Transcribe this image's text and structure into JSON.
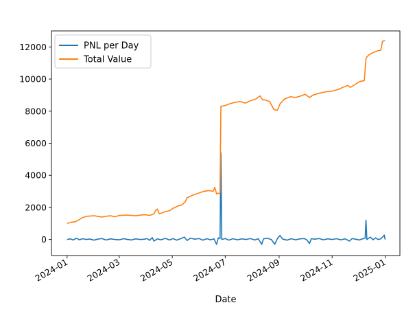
{
  "chart_data": {
    "type": "line",
    "xlabel": "Date",
    "ylabel": "",
    "xlim": [
      "2023-12-14",
      "2025-01-18"
    ],
    "ylim": [
      -1000,
      13000
    ],
    "grid": false,
    "legend": "upper-left",
    "x_ticks": [
      {
        "value": "2024-01-01",
        "label": "2024-01"
      },
      {
        "value": "2024-03-01",
        "label": "2024-03"
      },
      {
        "value": "2024-05-01",
        "label": "2024-05"
      },
      {
        "value": "2024-07-01",
        "label": "2024-07"
      },
      {
        "value": "2024-09-01",
        "label": "2024-09"
      },
      {
        "value": "2024-11-01",
        "label": "2024-11"
      },
      {
        "value": "2025-01-01",
        "label": "2025-01"
      }
    ],
    "y_ticks": [
      0,
      2000,
      4000,
      6000,
      8000,
      10000,
      12000
    ],
    "series": [
      {
        "name": "PNL per Day",
        "color": "#1f77b4",
        "points": [
          [
            "2024-01-01",
            0
          ],
          [
            "2024-01-05",
            40
          ],
          [
            "2024-01-08",
            -30
          ],
          [
            "2024-01-12",
            80
          ],
          [
            "2024-01-15",
            -20
          ],
          [
            "2024-01-19",
            50
          ],
          [
            "2024-01-23",
            0
          ],
          [
            "2024-01-27",
            30
          ],
          [
            "2024-02-01",
            -40
          ],
          [
            "2024-02-05",
            20
          ],
          [
            "2024-02-10",
            60
          ],
          [
            "2024-02-15",
            -30
          ],
          [
            "2024-02-20",
            40
          ],
          [
            "2024-02-25",
            0
          ],
          [
            "2024-03-01",
            -20
          ],
          [
            "2024-03-06",
            50
          ],
          [
            "2024-03-10",
            10
          ],
          [
            "2024-03-15",
            -30
          ],
          [
            "2024-03-20",
            40
          ],
          [
            "2024-03-25",
            0
          ],
          [
            "2024-03-30",
            20
          ],
          [
            "2024-04-02",
            60
          ],
          [
            "2024-04-05",
            -50
          ],
          [
            "2024-04-08",
            120
          ],
          [
            "2024-04-10",
            -100
          ],
          [
            "2024-04-14",
            40
          ],
          [
            "2024-04-18",
            -20
          ],
          [
            "2024-04-23",
            70
          ],
          [
            "2024-04-28",
            -30
          ],
          [
            "2024-05-02",
            60
          ],
          [
            "2024-05-06",
            -40
          ],
          [
            "2024-05-10",
            40
          ],
          [
            "2024-05-15",
            150
          ],
          [
            "2024-05-18",
            -60
          ],
          [
            "2024-05-22",
            80
          ],
          [
            "2024-05-27",
            20
          ],
          [
            "2024-06-01",
            60
          ],
          [
            "2024-06-05",
            -40
          ],
          [
            "2024-06-10",
            50
          ],
          [
            "2024-06-14",
            -20
          ],
          [
            "2024-06-18",
            40
          ],
          [
            "2024-06-21",
            -300
          ],
          [
            "2024-06-23",
            100
          ],
          [
            "2024-06-25",
            60
          ],
          [
            "2024-06-26",
            5400
          ],
          [
            "2024-06-27",
            0
          ],
          [
            "2024-07-01",
            60
          ],
          [
            "2024-07-05",
            -40
          ],
          [
            "2024-07-10",
            50
          ],
          [
            "2024-07-15",
            -20
          ],
          [
            "2024-07-20",
            40
          ],
          [
            "2024-07-25",
            0
          ],
          [
            "2024-07-30",
            60
          ],
          [
            "2024-08-04",
            -30
          ],
          [
            "2024-08-08",
            50
          ],
          [
            "2024-08-12",
            -300
          ],
          [
            "2024-08-14",
            40
          ],
          [
            "2024-08-18",
            80
          ],
          [
            "2024-08-23",
            0
          ],
          [
            "2024-08-27",
            -300
          ],
          [
            "2024-08-30",
            60
          ],
          [
            "2024-09-02",
            250
          ],
          [
            "2024-09-05",
            30
          ],
          [
            "2024-09-10",
            -40
          ],
          [
            "2024-09-15",
            50
          ],
          [
            "2024-09-20",
            -20
          ],
          [
            "2024-09-25",
            40
          ],
          [
            "2024-09-30",
            60
          ],
          [
            "2024-10-03",
            -30
          ],
          [
            "2024-10-06",
            -250
          ],
          [
            "2024-10-08",
            50
          ],
          [
            "2024-10-12",
            20
          ],
          [
            "2024-10-17",
            60
          ],
          [
            "2024-10-22",
            -20
          ],
          [
            "2024-10-27",
            40
          ],
          [
            "2024-11-01",
            0
          ],
          [
            "2024-11-06",
            50
          ],
          [
            "2024-11-11",
            -20
          ],
          [
            "2024-11-16",
            40
          ],
          [
            "2024-11-21",
            -100
          ],
          [
            "2024-11-24",
            60
          ],
          [
            "2024-11-28",
            20
          ],
          [
            "2024-12-02",
            -30
          ],
          [
            "2024-12-06",
            40
          ],
          [
            "2024-12-09",
            80
          ],
          [
            "2024-12-10",
            1200
          ],
          [
            "2024-12-11",
            0
          ],
          [
            "2024-12-15",
            150
          ],
          [
            "2024-12-18",
            -20
          ],
          [
            "2024-12-21",
            100
          ],
          [
            "2024-12-24",
            0
          ],
          [
            "2024-12-27",
            40
          ],
          [
            "2024-12-29",
            150
          ],
          [
            "2024-12-31",
            280
          ],
          [
            "2025-01-01",
            0
          ]
        ]
      },
      {
        "name": "Total Value",
        "color": "#ff7f0e",
        "points": [
          [
            "2024-01-01",
            1000
          ],
          [
            "2024-01-06",
            1080
          ],
          [
            "2024-01-10",
            1100
          ],
          [
            "2024-01-14",
            1200
          ],
          [
            "2024-01-18",
            1350
          ],
          [
            "2024-01-24",
            1450
          ],
          [
            "2024-02-01",
            1480
          ],
          [
            "2024-02-10",
            1400
          ],
          [
            "2024-02-15",
            1450
          ],
          [
            "2024-02-20",
            1480
          ],
          [
            "2024-02-25",
            1420
          ],
          [
            "2024-03-01",
            1500
          ],
          [
            "2024-03-10",
            1520
          ],
          [
            "2024-03-20",
            1480
          ],
          [
            "2024-03-30",
            1550
          ],
          [
            "2024-04-05",
            1500
          ],
          [
            "2024-04-10",
            1600
          ],
          [
            "2024-04-12",
            1820
          ],
          [
            "2024-04-14",
            1900
          ],
          [
            "2024-04-16",
            1600
          ],
          [
            "2024-04-22",
            1720
          ],
          [
            "2024-04-28",
            1800
          ],
          [
            "2024-05-02",
            1950
          ],
          [
            "2024-05-08",
            2100
          ],
          [
            "2024-05-12",
            2150
          ],
          [
            "2024-05-16",
            2350
          ],
          [
            "2024-05-18",
            2600
          ],
          [
            "2024-05-24",
            2750
          ],
          [
            "2024-06-01",
            2900
          ],
          [
            "2024-06-06",
            3000
          ],
          [
            "2024-06-12",
            3050
          ],
          [
            "2024-06-17",
            3000
          ],
          [
            "2024-06-19",
            3250
          ],
          [
            "2024-06-21",
            2850
          ],
          [
            "2024-06-25",
            2900
          ],
          [
            "2024-06-26",
            8300
          ],
          [
            "2024-07-01",
            8350
          ],
          [
            "2024-07-06",
            8450
          ],
          [
            "2024-07-12",
            8550
          ],
          [
            "2024-07-18",
            8600
          ],
          [
            "2024-07-24",
            8500
          ],
          [
            "2024-07-30",
            8650
          ],
          [
            "2024-08-05",
            8750
          ],
          [
            "2024-08-10",
            8950
          ],
          [
            "2024-08-13",
            8700
          ],
          [
            "2024-08-16",
            8700
          ],
          [
            "2024-08-21",
            8600
          ],
          [
            "2024-08-26",
            8100
          ],
          [
            "2024-08-30",
            8050
          ],
          [
            "2024-09-02",
            8450
          ],
          [
            "2024-09-07",
            8750
          ],
          [
            "2024-09-14",
            8900
          ],
          [
            "2024-09-20",
            8850
          ],
          [
            "2024-09-26",
            8950
          ],
          [
            "2024-10-01",
            9050
          ],
          [
            "2024-10-06",
            8850
          ],
          [
            "2024-10-10",
            9000
          ],
          [
            "2024-10-16",
            9100
          ],
          [
            "2024-10-24",
            9200
          ],
          [
            "2024-11-01",
            9250
          ],
          [
            "2024-11-08",
            9350
          ],
          [
            "2024-11-14",
            9500
          ],
          [
            "2024-11-19",
            9600
          ],
          [
            "2024-11-22",
            9480
          ],
          [
            "2024-11-27",
            9650
          ],
          [
            "2024-12-03",
            9850
          ],
          [
            "2024-12-08",
            9900
          ],
          [
            "2024-12-10",
            11300
          ],
          [
            "2024-12-13",
            11500
          ],
          [
            "2024-12-18",
            11650
          ],
          [
            "2024-12-23",
            11750
          ],
          [
            "2024-12-27",
            11800
          ],
          [
            "2024-12-29",
            12350
          ],
          [
            "2025-01-01",
            12400
          ]
        ]
      }
    ]
  }
}
